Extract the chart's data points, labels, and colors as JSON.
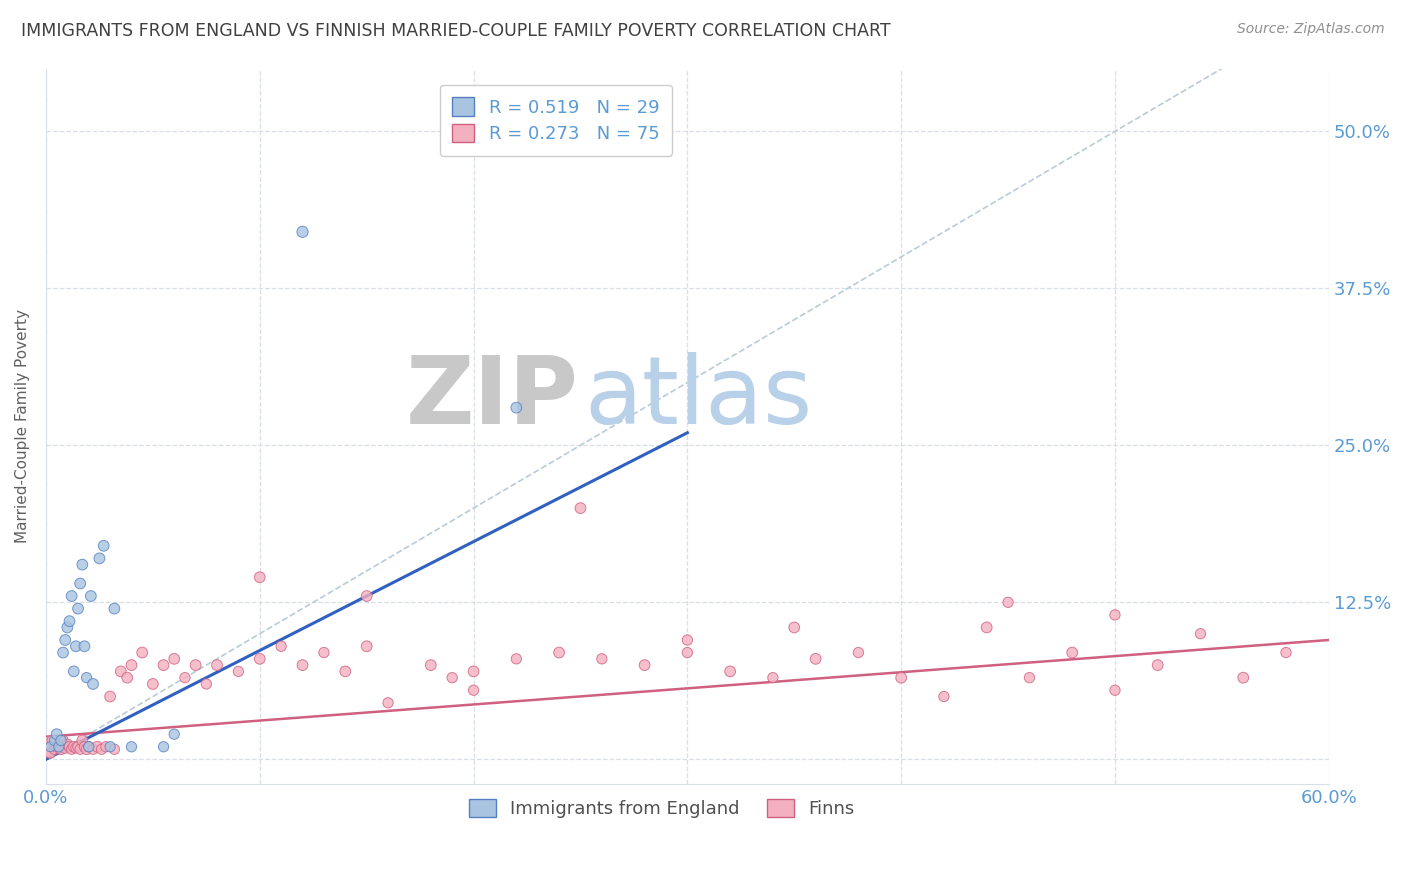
{
  "title": "IMMIGRANTS FROM ENGLAND VS FINNISH MARRIED-COUPLE FAMILY POVERTY CORRELATION CHART",
  "source": "Source: ZipAtlas.com",
  "ylabel": "Married-Couple Family Poverty",
  "xlim": [
    0.0,
    0.6
  ],
  "ylim": [
    -0.02,
    0.55
  ],
  "xtick_positions": [
    0.0,
    0.1,
    0.2,
    0.3,
    0.4,
    0.5,
    0.6
  ],
  "xticklabels": [
    "0.0%",
    "",
    "",
    "",
    "",
    "",
    "60.0%"
  ],
  "ytick_positions": [
    0.0,
    0.125,
    0.25,
    0.375,
    0.5
  ],
  "ytick_labels_right": [
    "",
    "12.5%",
    "25.0%",
    "37.5%",
    "50.0%"
  ],
  "legend_blue_R": "0.519",
  "legend_blue_N": "29",
  "legend_pink_R": "0.273",
  "legend_pink_N": "75",
  "blue_fill_color": "#a8c4e0",
  "blue_edge_color": "#5580c0",
  "blue_line_color": "#3060c0",
  "pink_fill_color": "#f4b0c0",
  "pink_edge_color": "#d06080",
  "pink_line_color": "#d06080",
  "diagonal_color": "#b8ccd8",
  "watermark_zip_color": "#c8c8c8",
  "watermark_atlas_color": "#b8d0e8",
  "axis_label_color": "#5b9bd5",
  "tick_label_color": "#5b9bd5",
  "title_color": "#404040",
  "grid_color": "#d8dfe8",
  "blue_scatter_x": [
    0.002,
    0.004,
    0.005,
    0.006,
    0.007,
    0.008,
    0.009,
    0.01,
    0.011,
    0.012,
    0.013,
    0.014,
    0.015,
    0.016,
    0.017,
    0.018,
    0.019,
    0.02,
    0.021,
    0.022,
    0.025,
    0.027,
    0.03,
    0.032,
    0.04,
    0.055,
    0.06,
    0.12,
    0.22
  ],
  "blue_scatter_y": [
    0.01,
    0.015,
    0.02,
    0.01,
    0.015,
    0.085,
    0.095,
    0.105,
    0.11,
    0.13,
    0.07,
    0.09,
    0.12,
    0.14,
    0.155,
    0.09,
    0.065,
    0.01,
    0.13,
    0.06,
    0.16,
    0.17,
    0.01,
    0.12,
    0.01,
    0.01,
    0.02,
    0.42,
    0.28
  ],
  "blue_scatter_s": [
    50,
    55,
    60,
    55,
    55,
    60,
    60,
    60,
    60,
    60,
    60,
    60,
    60,
    60,
    60,
    60,
    55,
    55,
    60,
    60,
    60,
    60,
    55,
    60,
    55,
    55,
    55,
    65,
    60
  ],
  "pink_scatter_x": [
    0.001,
    0.002,
    0.003,
    0.004,
    0.005,
    0.006,
    0.007,
    0.008,
    0.009,
    0.01,
    0.011,
    0.012,
    0.013,
    0.014,
    0.015,
    0.016,
    0.017,
    0.018,
    0.019,
    0.02,
    0.022,
    0.024,
    0.026,
    0.028,
    0.03,
    0.032,
    0.035,
    0.038,
    0.04,
    0.045,
    0.05,
    0.055,
    0.06,
    0.065,
    0.07,
    0.075,
    0.08,
    0.09,
    0.1,
    0.11,
    0.12,
    0.13,
    0.14,
    0.15,
    0.16,
    0.18,
    0.19,
    0.2,
    0.22,
    0.24,
    0.26,
    0.28,
    0.3,
    0.32,
    0.34,
    0.36,
    0.38,
    0.4,
    0.42,
    0.44,
    0.46,
    0.48,
    0.5,
    0.52,
    0.54,
    0.56,
    0.58,
    0.25,
    0.1,
    0.3,
    0.35,
    0.5,
    0.45,
    0.2,
    0.15
  ],
  "pink_scatter_y": [
    0.01,
    0.005,
    0.015,
    0.008,
    0.01,
    0.012,
    0.008,
    0.015,
    0.009,
    0.012,
    0.01,
    0.008,
    0.01,
    0.009,
    0.01,
    0.008,
    0.015,
    0.01,
    0.008,
    0.01,
    0.008,
    0.01,
    0.008,
    0.01,
    0.05,
    0.008,
    0.07,
    0.065,
    0.075,
    0.085,
    0.06,
    0.075,
    0.08,
    0.065,
    0.075,
    0.06,
    0.075,
    0.07,
    0.08,
    0.09,
    0.075,
    0.085,
    0.07,
    0.09,
    0.045,
    0.075,
    0.065,
    0.07,
    0.08,
    0.085,
    0.08,
    0.075,
    0.085,
    0.07,
    0.065,
    0.08,
    0.085,
    0.065,
    0.05,
    0.105,
    0.065,
    0.085,
    0.055,
    0.075,
    0.1,
    0.065,
    0.085,
    0.2,
    0.145,
    0.095,
    0.105,
    0.115,
    0.125,
    0.055,
    0.13
  ],
  "pink_scatter_s": [
    220,
    60,
    60,
    55,
    60,
    55,
    60,
    55,
    60,
    55,
    60,
    55,
    60,
    55,
    60,
    55,
    60,
    55,
    60,
    55,
    55,
    60,
    55,
    55,
    60,
    55,
    60,
    60,
    60,
    60,
    60,
    60,
    60,
    55,
    60,
    55,
    60,
    55,
    60,
    55,
    60,
    55,
    60,
    60,
    55,
    60,
    55,
    60,
    55,
    60,
    55,
    60,
    55,
    60,
    55,
    60,
    55,
    60,
    55,
    60,
    55,
    60,
    55,
    60,
    55,
    60,
    55,
    60,
    60,
    55,
    60,
    55,
    55,
    55,
    60
  ],
  "blue_line_x": [
    0.0,
    0.3
  ],
  "blue_line_y": [
    0.0,
    0.26
  ],
  "pink_line_x": [
    0.0,
    0.6
  ],
  "pink_line_y": [
    0.018,
    0.095
  ],
  "diagonal_line_x": [
    0.0,
    0.55
  ],
  "diagonal_line_y": [
    0.0,
    0.55
  ]
}
